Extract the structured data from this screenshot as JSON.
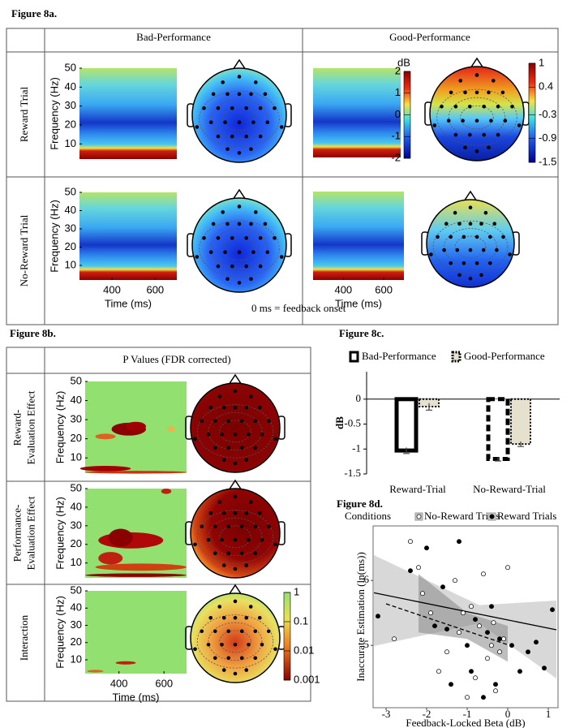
{
  "figure_8a": {
    "label": "Figure 8a.",
    "columns": [
      "Bad-Performance",
      "Good-Performance"
    ],
    "rows": [
      "Reward Trial",
      "No-Reward Trial"
    ],
    "y_label": "Frequency (Hz)",
    "x_label": "Time (ms)",
    "xlim": [
      250,
      700
    ],
    "ylim": [
      2,
      50
    ],
    "xticks": [
      400,
      600
    ],
    "yticks": [
      10,
      20,
      30,
      40,
      50
    ],
    "note": "0 ms = feedback onset",
    "colorbars": [
      {
        "label": "dB",
        "lim": [
          -2,
          2
        ],
        "ticks": [
          2,
          1,
          0,
          -1,
          -2
        ]
      },
      {
        "lim": [
          -1.5,
          1
        ],
        "ticks": [
          1,
          0.4,
          -0.3,
          -0.9,
          -1.5
        ]
      }
    ]
  },
  "figure_8b": {
    "label": "Figure 8b.",
    "column": "P Values (FDR corrected)",
    "rows": [
      [
        "Reward-",
        "Evaluation Effect"
      ],
      [
        "Performance-",
        "Evaluation Effect"
      ],
      [
        "Interaction"
      ]
    ],
    "y_label": "Frequency (Hz)",
    "x_label": "Time (ms)",
    "xlim": [
      250,
      700
    ],
    "ylim": [
      2,
      50
    ],
    "xticks": [
      400,
      600
    ],
    "yticks": [
      10,
      20,
      30,
      40,
      50
    ],
    "colorbar": {
      "log": true,
      "lim": [
        0.001,
        1
      ],
      "ticks": [
        1,
        0.1,
        0.01,
        0.001
      ]
    }
  },
  "chart_data": [
    {
      "type": "bar",
      "title": "Figure 8c.",
      "categories": [
        "Reward-Trial",
        "No-Reward-Trial"
      ],
      "y_label": "dB",
      "ylim": [
        -1.5,
        0.55
      ],
      "yticks": [
        0,
        -0.5,
        -1,
        -1.5
      ],
      "series": [
        {
          "name": "Bad-Performance",
          "color": "#ffffff",
          "values": [
            -1.03,
            -1.2
          ],
          "errors": [
            0.06,
            0.04
          ]
        },
        {
          "name": "Good-Performance",
          "color": "#e6e1cf",
          "values": [
            -0.15,
            -0.9
          ],
          "errors": [
            0.07,
            0.05
          ]
        }
      ]
    },
    {
      "type": "scatter",
      "title": "Figure 8d.",
      "legend_title": "Conditions",
      "x_label": "Feedback-Locked Beta (dB)",
      "y_label": "Inaccurate Estimation (ln(ms))",
      "xlim": [
        -3.32,
        1.24
      ],
      "ylim": [
        4.04,
        6.84
      ],
      "xticks": [
        -3,
        -2,
        -1,
        0,
        1
      ],
      "yticks": [
        5,
        6
      ],
      "series": [
        {
          "name": "No-Reward Trials",
          "color": "#ffffff",
          "x": [
            -2.4,
            -2.2,
            -2.1,
            -1.9,
            -1.7,
            -1.5,
            -1.3,
            -1.2,
            -1.0,
            -0.9,
            -0.8,
            -0.7,
            -0.6,
            -0.5,
            -0.4,
            -0.3,
            -0.2,
            -0.1,
            0.0,
            -2.8,
            -1.1,
            -0.35
          ],
          "y": [
            6.6,
            6.2,
            5.8,
            5.5,
            4.6,
            4.9,
            6.0,
            5.2,
            4.2,
            5.6,
            4.5,
            5.3,
            6.1,
            4.8,
            5.0,
            4.3,
            4.9,
            5.1,
            6.2,
            5.1,
            5.5,
            5.35
          ],
          "fit": {
            "x": [
              -3,
              0
            ],
            "y": [
              5.64,
              5.01
            ]
          },
          "band": {
            "x": [
              -2.2,
              -1,
              0
            ],
            "upper": [
              6.1,
              5.5,
              5.3
            ],
            "lower": [
              5.2,
              5.1,
              4.75
            ]
          }
        },
        {
          "name": "Reward Trials",
          "color": "#000000",
          "x": [
            -3.2,
            -2.4,
            -2.0,
            -1.8,
            -1.6,
            -1.4,
            -1.2,
            -1.0,
            -0.9,
            -0.8,
            -0.6,
            -0.5,
            -0.4,
            -0.3,
            -0.2,
            0.1,
            0.3,
            0.5,
            0.7,
            0.9,
            1.1,
            -1.5
          ],
          "y": [
            5.45,
            6.15,
            6.5,
            5.3,
            5.9,
            4.4,
            6.6,
            5.0,
            4.6,
            5.4,
            4.2,
            5.2,
            5.6,
            4.4,
            5.1,
            5.0,
            4.6,
            4.9,
            5.05,
            4.65,
            5.55,
            5.25
          ],
          "fit": {
            "x": [
              -3.3,
              1.2
            ],
            "y": [
              5.81,
              5.24
            ]
          },
          "band": {
            "x": [
              -3.3,
              -0.7,
              1.2
            ],
            "upper": [
              6.39,
              5.62,
              5.69
            ],
            "lower": [
              4.99,
              5.34,
              4.49
            ]
          }
        }
      ]
    }
  ]
}
